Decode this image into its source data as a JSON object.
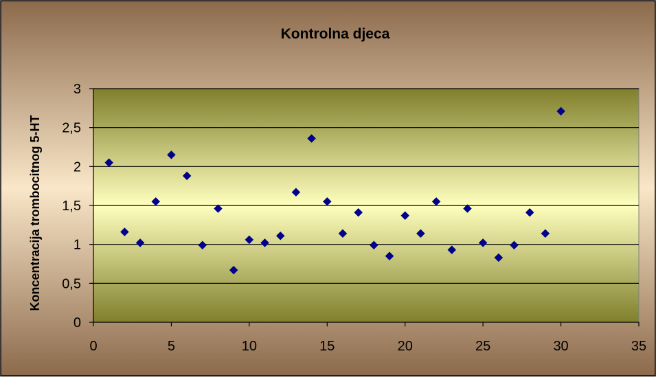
{
  "chart_data": {
    "type": "scatter",
    "title": "Kontrolna djeca",
    "xlabel": "",
    "ylabel": "Koncentracija trombocitnog 5-HT",
    "xlim": [
      0,
      35
    ],
    "ylim": [
      0,
      3
    ],
    "x_ticks": [
      0,
      5,
      10,
      15,
      20,
      25,
      30,
      35
    ],
    "y_ticks": [
      0,
      0.5,
      1,
      1.5,
      2,
      2.5,
      3
    ],
    "x_tick_labels": [
      "0",
      "5",
      "10",
      "15",
      "20",
      "25",
      "30",
      "35"
    ],
    "y_tick_labels": [
      "0",
      "0,5",
      "1",
      "1,5",
      "2",
      "2,5",
      "3"
    ],
    "grid": "horizontal",
    "legend": "none",
    "colors": {
      "marker": "#00008B",
      "plot_fill_top": "#7F7F2C",
      "plot_fill_mid": "#FFFFBE",
      "background_edge": "#8C6A4C",
      "background_mid": "#FAE6C8"
    },
    "series": [
      {
        "x": [
          1,
          2,
          3,
          4,
          5,
          6,
          7,
          8,
          9,
          10,
          11,
          12,
          13,
          14,
          15,
          16,
          17,
          18,
          19,
          20,
          21,
          22,
          23,
          24,
          25,
          26,
          27,
          28,
          29,
          30
        ],
        "values": [
          2.05,
          1.16,
          1.02,
          1.55,
          2.15,
          1.88,
          0.99,
          1.46,
          0.67,
          1.06,
          1.02,
          1.11,
          1.67,
          2.36,
          1.55,
          1.14,
          1.41,
          0.99,
          0.85,
          1.37,
          1.14,
          1.55,
          0.93,
          1.46,
          1.02,
          0.83,
          0.99,
          1.41,
          1.14,
          2.71
        ]
      }
    ]
  }
}
